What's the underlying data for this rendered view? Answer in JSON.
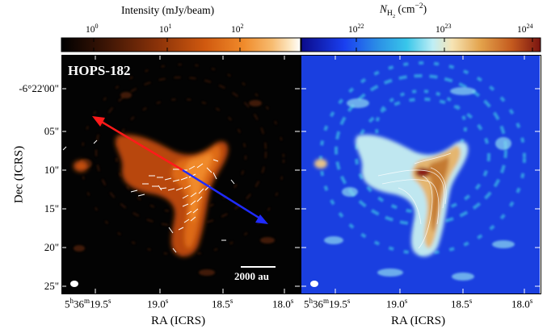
{
  "left_colorbar": {
    "title": "Intensity (mJy/beam)",
    "ticks": [
      "10",
      "10",
      "10"
    ],
    "tick_exps": [
      "0",
      "1",
      "2"
    ],
    "colormap": [
      "#000000",
      "#3a1405",
      "#8a3209",
      "#d0590f",
      "#f08a2a",
      "#f7bb6f",
      "#fde9c7",
      "#ffffff"
    ]
  },
  "right_colorbar": {
    "title_main": "N",
    "title_sub": "H",
    "title_subsub": "2",
    "title_unit": "(cm",
    "title_unit_exp": "−2",
    "title_close": ")",
    "ticks": [
      "10",
      "10",
      "10"
    ],
    "tick_exps": [
      "22",
      "23",
      "24"
    ],
    "colormap": [
      "#0b0b8a",
      "#1a3ff0",
      "#2b8fe6",
      "#38c6ea",
      "#bfeef5",
      "#f6e4b4",
      "#e3a24b",
      "#c45a1e",
      "#7a1410"
    ]
  },
  "left_panel": {
    "source_label": "HOPS-182",
    "scale_bar_label": "2000 au",
    "colors": {
      "red_arrow": "#ff1a1a",
      "blue_arrow": "#1f2bff",
      "background": "#030303"
    }
  },
  "right_panel": {
    "colors": {
      "background": "#1a3fe0"
    }
  },
  "y_axis": {
    "title": "Dec (ICRS)",
    "labels": [
      "-6°22'00\"",
      "05\"",
      "10\"",
      "15\"",
      "20\"",
      "25\""
    ]
  },
  "x_axis_left": {
    "title": "RA (ICRS)",
    "labels": [
      {
        "h": "5",
        "m": "36",
        "s": "19.5",
        "hu": "h",
        "mu": "m",
        "su": "s"
      },
      {
        "s": "19.0",
        "su": "s"
      },
      {
        "s": "18.5",
        "su": "s"
      },
      {
        "s": "18.0",
        "su": "s"
      }
    ]
  },
  "x_axis_right": {
    "title": "RA (ICRS)",
    "labels": [
      {
        "h": "5",
        "m": "36",
        "s": "19.5",
        "hu": "h",
        "mu": "m",
        "su": "s"
      },
      {
        "s": "19.0",
        "su": "s"
      },
      {
        "s": "18.5",
        "su": "s"
      },
      {
        "s": "18.0",
        "su": "s"
      }
    ]
  }
}
